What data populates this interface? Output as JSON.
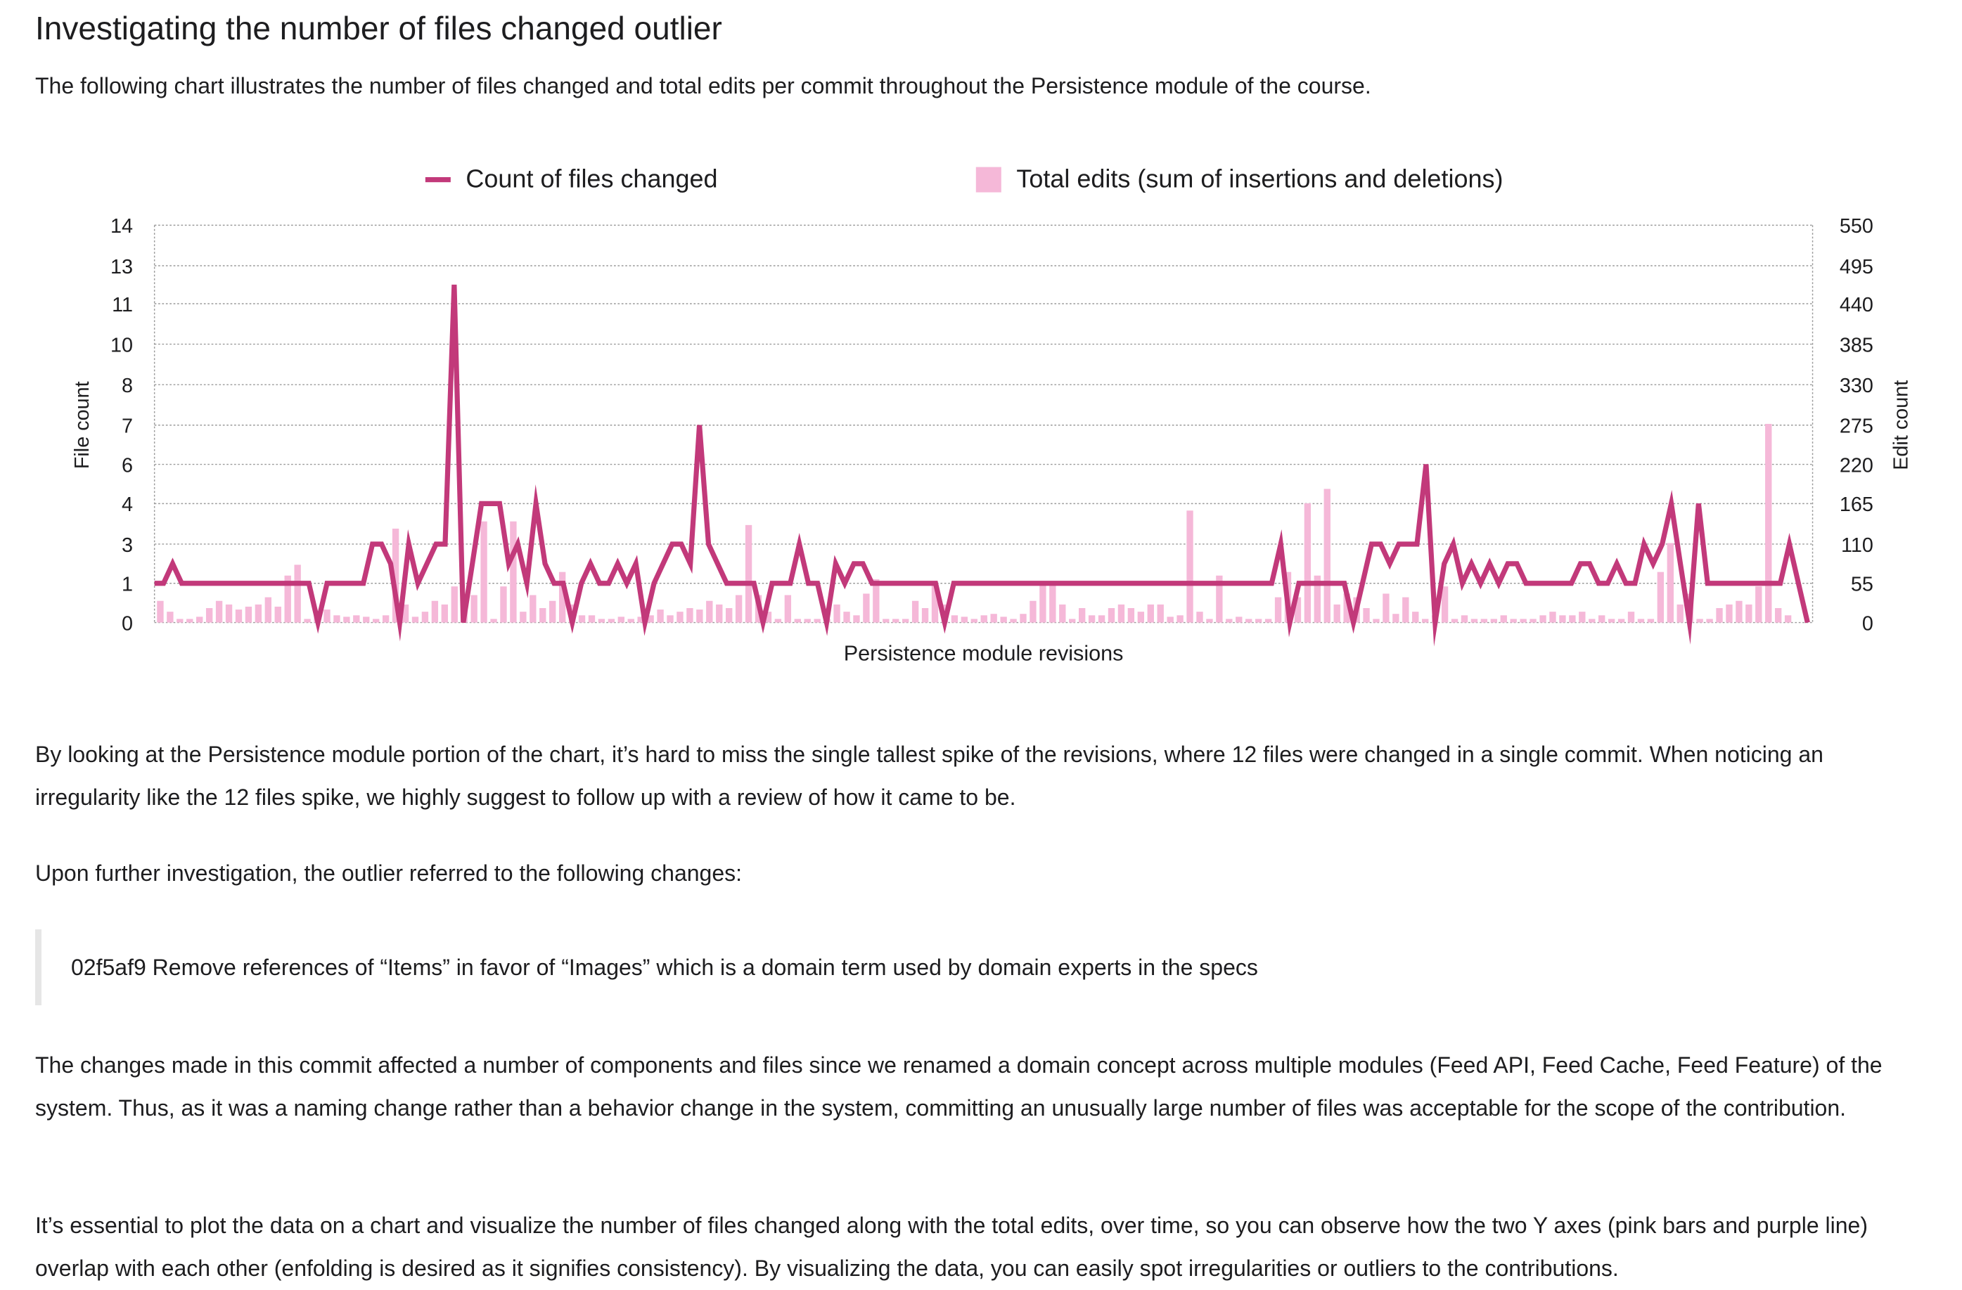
{
  "article": {
    "heading": "Investigating the number of files changed outlier",
    "intro": "The following chart illustrates the number of files changed and total edits per commit throughout the Persistence module of the course.",
    "para1": "By looking at the Persistence module portion of the chart, it’s hard to miss the single tallest spike of the revisions, where 12 files were changed in a single commit. When noticing an irregularity like the 12 files spike, we highly suggest to follow up with a review of how it came to be.",
    "para2": "Upon further investigation, the outlier referred to the following changes:",
    "quote": "02f5af9 Remove references of “Items” in favor of “Images” which is a domain term used by domain experts in the specs",
    "para3": "The changes made in this commit affected a number of components and files since we renamed a domain concept across multiple modules (Feed API, Feed Cache, Feed Feature) of the system. Thus, as it was a naming change rather than a behavior change in the system, committing an unusually large number of files was acceptable for the scope of the contribution.",
    "para4": "It’s essential to plot the data on a chart and visualize the number of files changed along with the total edits, over time, so you can observe how the two Y axes (pink bars and purple line) overlap with each other (enfolding is desired as it signifies consistency). By visualizing the data, you can easily spot irregularities or outliers to the contributions."
  },
  "chart_data": {
    "type": "bar+line",
    "legend_placement": "top",
    "grid": true,
    "colors": {
      "line": "#c2397a",
      "bars": "#f5b8d8",
      "grid": "#9a9a9a"
    },
    "xlabel": "Persistence module revisions",
    "ylabel_left": "File count",
    "ylabel_right": "Edit count",
    "yticks_left": [
      "14",
      "13",
      "11",
      "10",
      "8",
      "7",
      "6",
      "4",
      "3",
      "1",
      "0"
    ],
    "yticks_right": [
      "550",
      "495",
      "440",
      "385",
      "330",
      "275",
      "220",
      "165",
      "110",
      "55",
      "0"
    ],
    "ylim_left": [
      0,
      14
    ],
    "ylim_right": [
      0,
      550
    ],
    "series": [
      {
        "name": "Count of files changed",
        "type": "line",
        "axis": "left",
        "values": [
          1,
          1,
          2,
          1,
          1,
          1,
          1,
          1,
          1,
          1,
          1,
          1,
          1,
          1,
          1,
          1,
          1,
          1,
          0,
          1,
          1,
          1,
          1,
          1,
          3,
          3,
          2,
          0,
          3,
          1,
          2,
          3,
          3,
          12,
          0,
          2,
          4,
          4,
          4,
          2,
          3,
          1,
          4,
          2,
          1,
          1,
          0,
          1,
          2,
          1,
          1,
          2,
          1,
          2,
          0,
          1,
          2,
          3,
          3,
          2,
          7,
          3,
          2,
          1,
          1,
          1,
          1,
          0,
          1,
          1,
          1,
          3,
          1,
          1,
          0,
          2,
          1,
          2,
          2,
          1,
          1,
          1,
          1,
          1,
          1,
          1,
          1,
          0,
          1,
          1,
          1,
          1,
          1,
          1,
          1,
          1,
          1,
          1,
          1,
          1,
          1,
          1,
          1,
          1,
          1,
          1,
          1,
          1,
          1,
          1,
          1,
          1,
          1,
          1,
          1,
          1,
          1,
          1,
          1,
          1,
          1,
          1,
          1,
          1,
          3,
          0,
          1,
          1,
          1,
          1,
          1,
          1,
          0,
          1,
          3,
          3,
          2,
          3,
          3,
          3,
          6,
          0,
          2,
          3,
          1,
          2,
          1,
          2,
          1,
          2,
          2,
          1,
          1,
          1,
          1,
          1,
          1,
          2,
          2,
          1,
          1,
          2,
          1,
          1,
          3,
          2,
          3,
          4,
          2,
          0,
          4,
          1,
          1,
          1,
          1,
          1,
          1,
          1,
          1,
          1,
          3,
          1,
          0
        ],
        "start_x": 122,
        "end_x": 1428
      },
      {
        "name": "Total edits (sum of insertions and deletions)",
        "type": "bar",
        "axis": "right",
        "values": [
          30,
          15,
          5,
          5,
          8,
          20,
          30,
          25,
          18,
          22,
          25,
          35,
          22,
          65,
          80,
          5,
          15,
          18,
          10,
          8,
          10,
          8,
          5,
          10,
          130,
          25,
          8,
          15,
          30,
          25,
          50,
          22,
          38,
          140,
          5,
          50,
          140,
          15,
          38,
          20,
          30,
          70,
          25,
          10,
          10,
          5,
          5,
          8,
          5,
          8,
          10,
          18,
          10,
          15,
          20,
          18,
          30,
          25,
          20,
          38,
          135,
          38,
          15,
          5,
          38,
          5,
          5,
          5,
          5,
          25,
          15,
          10,
          40,
          60,
          5,
          5,
          5,
          30,
          20,
          55,
          25,
          10,
          8,
          5,
          10,
          12,
          8,
          5,
          12,
          30,
          55,
          55,
          25,
          5,
          20,
          10,
          10,
          20,
          25,
          20,
          15,
          25,
          25,
          8,
          10,
          155,
          15,
          5,
          65,
          5,
          8,
          5,
          5,
          5,
          35,
          70,
          35,
          165,
          65,
          185,
          25,
          40,
          35,
          20,
          5,
          40,
          12,
          35,
          15,
          5,
          10,
          50,
          5,
          10,
          5,
          5,
          5,
          10,
          5,
          5,
          5,
          10,
          15,
          10,
          10,
          15,
          5,
          10,
          5,
          5,
          15,
          5,
          5,
          70,
          110,
          25,
          40,
          5,
          5,
          20,
          25,
          30,
          25,
          50,
          275,
          20,
          10
        ],
        "start_x": 127,
        "end_x": 1413
      }
    ]
  }
}
